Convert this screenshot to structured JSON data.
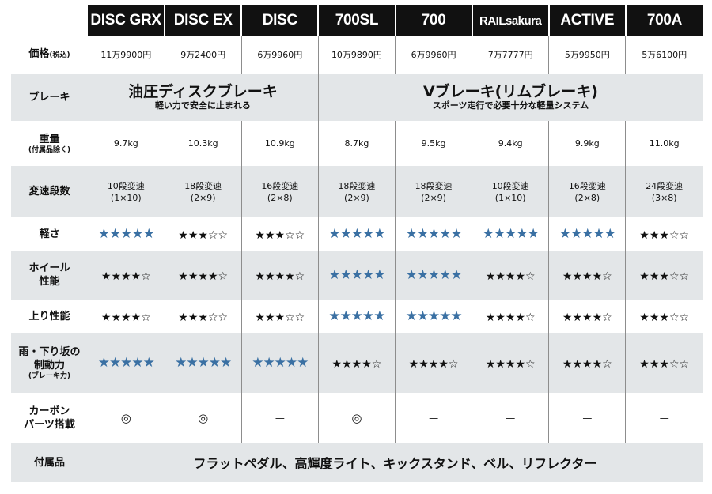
{
  "models": [
    "DISC GRX",
    "DISC EX",
    "DISC",
    "700SL",
    "700",
    "RAILsakura",
    "ACTIVE",
    "700A"
  ],
  "rows": {
    "price": {
      "label": "価格",
      "label_sub": "(税込)",
      "values": [
        "11万9900円",
        "9万2400円",
        "6万9960円",
        "10万9890円",
        "6万9960円",
        "7万7777円",
        "5万9950円",
        "5万6100円"
      ]
    },
    "brake": {
      "label": "ブレーキ",
      "groups": [
        {
          "title": "油圧ディスクブレーキ",
          "subtitle": "軽い力で安全に止まれる",
          "span": 3
        },
        {
          "title": "Vブレーキ(リムブレーキ)",
          "subtitle": "スポーツ走行で必要十分な軽量システム",
          "span": 5
        }
      ]
    },
    "weight": {
      "label": "重量",
      "label_sub": "(付属品除く)",
      "values": [
        "9.7kg",
        "10.3kg",
        "10.9kg",
        "8.7kg",
        "9.5kg",
        "9.4kg",
        "9.9kg",
        "11.0kg"
      ]
    },
    "gears": {
      "label": "変速段数",
      "values": [
        [
          "10段変速",
          "(1×10)"
        ],
        [
          "18段変速",
          "(2×9)"
        ],
        [
          "16段変速",
          "(2×8)"
        ],
        [
          "18段変速",
          "(2×9)"
        ],
        [
          "18段変速",
          "(2×9)"
        ],
        [
          "10段変速",
          "(1×10)"
        ],
        [
          "16段変速",
          "(2×8)"
        ],
        [
          "24段変速",
          "(3×8)"
        ]
      ]
    },
    "lightness": {
      "label": "軽さ",
      "stars": [
        5,
        3,
        3,
        5,
        5,
        5,
        5,
        3
      ]
    },
    "wheel": {
      "label_lines": [
        "ホイール",
        "性能"
      ],
      "stars": [
        4,
        4,
        4,
        5,
        5,
        4,
        4,
        3
      ]
    },
    "climb": {
      "label": "上り性能",
      "stars": [
        4,
        3,
        3,
        5,
        5,
        4,
        4,
        3
      ]
    },
    "braking": {
      "label_lines": [
        "雨・下り坂の",
        "制動力"
      ],
      "label_sub": "(ブレーキ力)",
      "stars": [
        5,
        5,
        5,
        4,
        4,
        4,
        4,
        3
      ]
    },
    "carbon": {
      "label_lines": [
        "カーボン",
        "パーツ搭載"
      ],
      "values": [
        "◎",
        "◎",
        "—",
        "◎",
        "—",
        "—",
        "—",
        "—"
      ]
    },
    "accessories": {
      "label": "付属品",
      "value": "フラットペダル、高輝度ライト、キックスタンド、ベル、リフレクター"
    }
  },
  "colors": {
    "header_bg": "#111111",
    "row_gray": "#e3e6e8",
    "star_blue": "#3a70a3"
  },
  "icons": {
    "full_star": "star-filled-icon",
    "empty_star": "star-outline-icon",
    "double_circle": "double-circle-icon"
  }
}
